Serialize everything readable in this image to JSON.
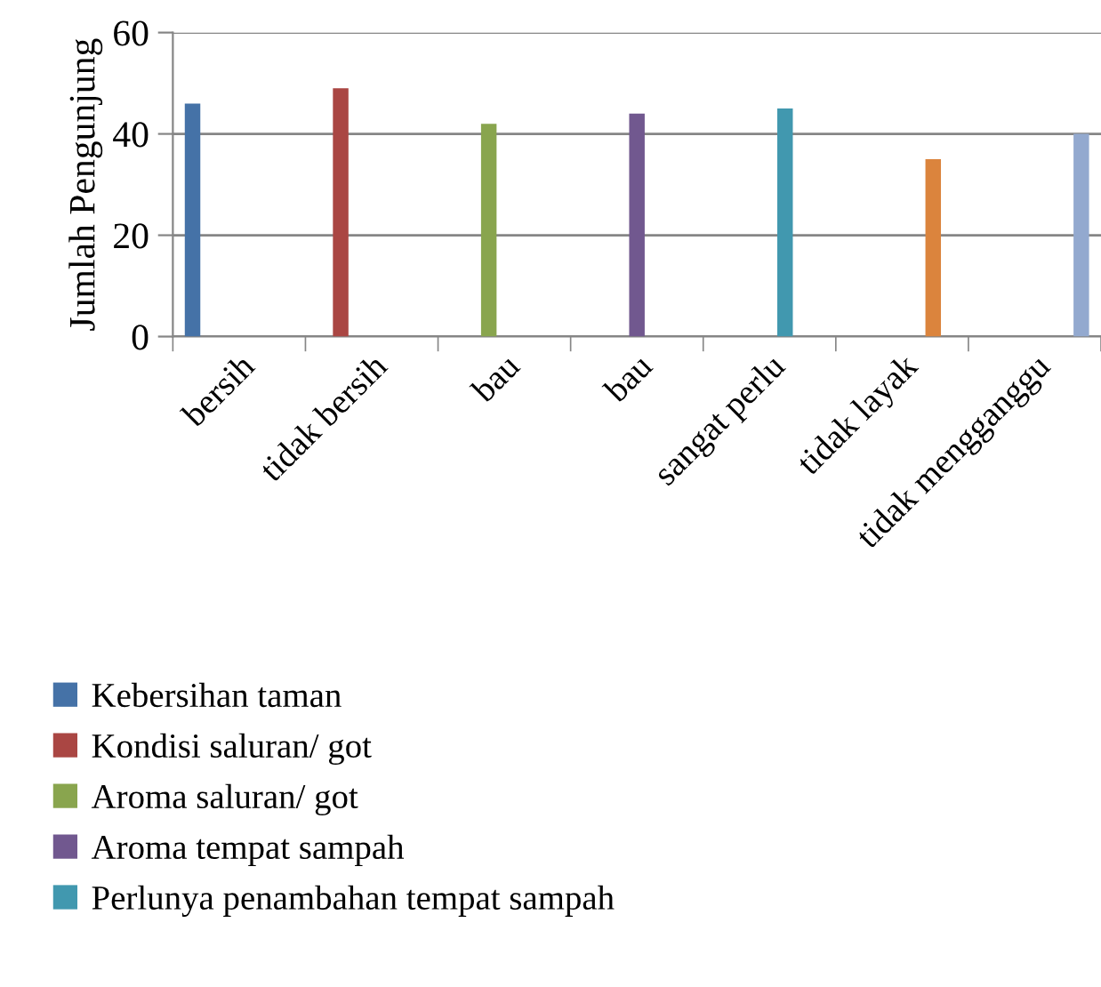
{
  "chart_data": {
    "type": "bar",
    "ylabel": "Jumlah Pengunjung",
    "categories": [
      "bersih",
      "tidak bersih",
      "bau",
      "bau",
      "sangat perlu",
      "tidak layak",
      "tidak mengganggu"
    ],
    "series": [
      {
        "name": "Kebersihan taman",
        "color": "#4572a7",
        "values": [
          46,
          null,
          null,
          null,
          null,
          null,
          null
        ]
      },
      {
        "name": "Kondisi saluran/ got",
        "color": "#aa4643",
        "values": [
          null,
          49,
          null,
          null,
          null,
          null,
          null
        ]
      },
      {
        "name": "Aroma saluran/ got",
        "color": "#89a54e",
        "values": [
          null,
          null,
          42,
          null,
          null,
          null,
          null
        ]
      },
      {
        "name": "Aroma tempat sampah",
        "color": "#71588f",
        "values": [
          null,
          null,
          null,
          44,
          null,
          null,
          null
        ]
      },
      {
        "name": "Perlunya penambahan tempat sampah",
        "color": "#4198af",
        "values": [
          null,
          null,
          null,
          null,
          45,
          null,
          null
        ]
      },
      {
        "color": "#db843d",
        "values": [
          null,
          null,
          null,
          null,
          null,
          35,
          null
        ]
      },
      {
        "color": "#93a9cf",
        "values": [
          null,
          null,
          null,
          null,
          null,
          null,
          40
        ]
      }
    ],
    "ylim": [
      0,
      60
    ],
    "yticks": [
      0,
      20,
      40,
      60
    ],
    "grid": "y",
    "legend": "bottom"
  }
}
